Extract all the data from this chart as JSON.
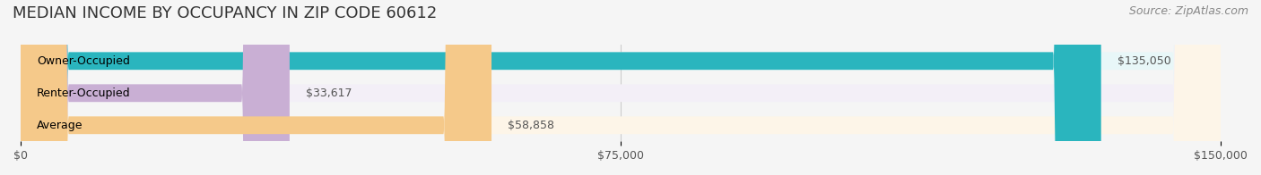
{
  "title": "MEDIAN INCOME BY OCCUPANCY IN ZIP CODE 60612",
  "source": "Source: ZipAtlas.com",
  "categories": [
    "Owner-Occupied",
    "Renter-Occupied",
    "Average"
  ],
  "values": [
    135050,
    33617,
    58858
  ],
  "bar_colors": [
    "#2ab5be",
    "#c9afd4",
    "#f5c98a"
  ],
  "bar_bg_colors": [
    "#e8f7f8",
    "#f3eff7",
    "#fdf5e8"
  ],
  "value_labels": [
    "$135,050",
    "$33,617",
    "$58,858"
  ],
  "xlim": [
    0,
    150000
  ],
  "xticks": [
    0,
    75000,
    150000
  ],
  "xtick_labels": [
    "$0",
    "$75,000",
    "$150,000"
  ],
  "title_fontsize": 13,
  "source_fontsize": 9,
  "label_fontsize": 9,
  "tick_fontsize": 9,
  "bar_height": 0.55,
  "background_color": "#f5f5f5"
}
